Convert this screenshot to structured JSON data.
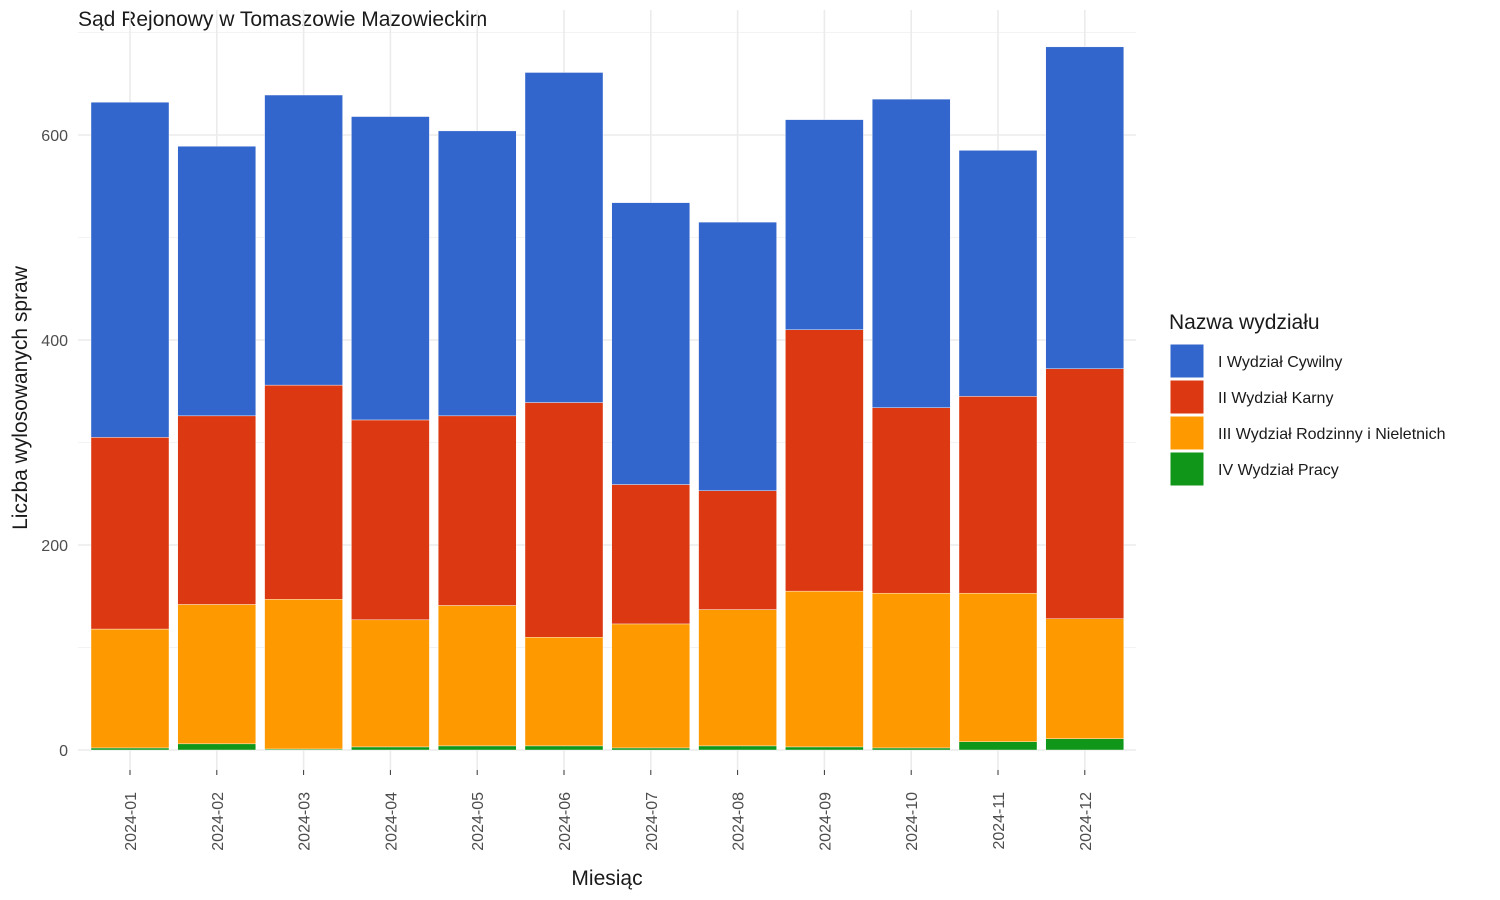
{
  "chart_data": {
    "type": "bar",
    "stacked": true,
    "title": "Sąd Rejonowy w Tomaszowie Mazowieckim",
    "xlabel": "Miesiąc",
    "ylabel": "Liczba wylosowanych spraw",
    "ylim": [
      0,
      700
    ],
    "y_ticks": [
      0,
      200,
      400,
      600
    ],
    "grid": true,
    "legend_title": "Nazwa wydziału",
    "legend_position": "right",
    "categories": [
      "2024-01",
      "2024-02",
      "2024-03",
      "2024-04",
      "2024-05",
      "2024-06",
      "2024-07",
      "2024-08",
      "2024-09",
      "2024-10",
      "2024-11",
      "2024-12"
    ],
    "series": [
      {
        "name": "IV Wydział Pracy",
        "color": "#109618",
        "values": [
          2,
          6,
          1,
          3,
          4,
          4,
          2,
          4,
          3,
          2,
          8,
          11
        ]
      },
      {
        "name": "III Wydział Rodzinny i Nieletnich",
        "color": "#ff9900",
        "values": [
          116,
          136,
          146,
          124,
          137,
          106,
          121,
          133,
          152,
          151,
          145,
          117
        ]
      },
      {
        "name": "II Wydział Karny",
        "color": "#dc3912",
        "values": [
          187,
          184,
          209,
          195,
          185,
          229,
          136,
          116,
          255,
          181,
          192,
          244
        ]
      },
      {
        "name": "I Wydział Cywilny",
        "color": "#3366cc",
        "values": [
          327,
          263,
          283,
          296,
          278,
          322,
          275,
          262,
          205,
          301,
          240,
          314
        ]
      }
    ]
  }
}
